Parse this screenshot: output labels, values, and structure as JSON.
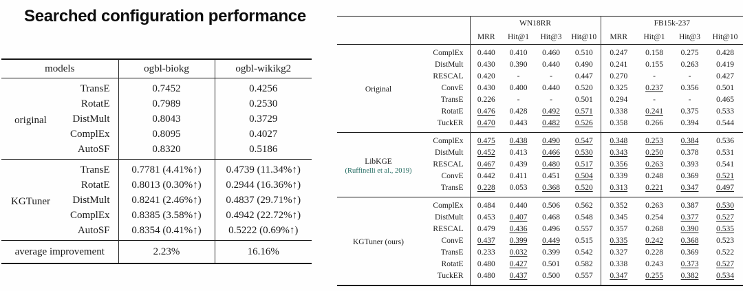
{
  "title": "Searched configuration performance",
  "colors": {
    "citation_link": "#20695f",
    "text": "#1a1a1a",
    "rule": "#161616"
  },
  "left_table": {
    "headers": [
      "models",
      "ogbl-biokg",
      "ogbl-wikikg2"
    ],
    "groups": [
      {
        "label": "original",
        "rows": [
          {
            "model": "TransE",
            "biokg": "0.7452",
            "wikikg2": "0.4256"
          },
          {
            "model": "RotatE",
            "biokg": "0.7989",
            "wikikg2": "0.2530"
          },
          {
            "model": "DistMult",
            "biokg": "0.8043",
            "wikikg2": "0.3729"
          },
          {
            "model": "ComplEx",
            "biokg": "0.8095",
            "wikikg2": "0.4027"
          },
          {
            "model": "AutoSF",
            "biokg": "0.8320",
            "wikikg2": "0.5186"
          }
        ]
      },
      {
        "label": "KGTuner",
        "rows": [
          {
            "model": "TransE",
            "biokg": "0.7781 (4.41%↑)",
            "wikikg2": "0.4739 (11.34%↑)"
          },
          {
            "model": "RotatE",
            "biokg": "0.8013 (0.30%↑)",
            "wikikg2": "0.2944 (16.36%↑)"
          },
          {
            "model": "DistMult",
            "biokg": "0.8241 (2.46%↑)",
            "wikikg2": "0.4837 (29.71%↑)"
          },
          {
            "model": "ComplEx",
            "biokg": "0.8385 (3.58%↑)",
            "wikikg2": "0.4942 (22.72%↑)"
          },
          {
            "model": "AutoSF",
            "biokg": "0.8354 (0.41%↑)",
            "wikikg2": "0.5222 (0.69%↑)"
          }
        ]
      }
    ],
    "footer": {
      "label": "average improvement",
      "biokg": "2.23%",
      "wikikg2": "16.16%"
    }
  },
  "right_table": {
    "col_groups": [
      "WN18RR",
      "FB15k-237"
    ],
    "metric_headers": [
      "MRR",
      "Hit@1",
      "Hit@3",
      "Hit@10",
      "MRR",
      "Hit@1",
      "Hit@3",
      "Hit@10"
    ],
    "style_legend": "p=plain, b=bold(best), u=underline(second best)",
    "groups": [
      {
        "label_lines": [
          "Original"
        ],
        "rows": [
          {
            "model": "ComplEx",
            "values": [
              "0.440",
              "0.410",
              "0.460",
              "0.510",
              "0.247",
              "0.158",
              "0.275",
              "0.428"
            ],
            "styles": "pppppppp"
          },
          {
            "model": "DistMult",
            "values": [
              "0.430",
              "0.390",
              "0.440",
              "0.490",
              "0.241",
              "0.155",
              "0.263",
              "0.419"
            ],
            "styles": "pppppppp"
          },
          {
            "model": "RESCAL",
            "values": [
              "0.420",
              "-",
              "-",
              "0.447",
              "0.270",
              "-",
              "-",
              "0.427"
            ],
            "styles": "pppppppp"
          },
          {
            "model": "ConvE",
            "values": [
              "0.430",
              "0.400",
              "0.440",
              "0.520",
              "0.325",
              "0.237",
              "0.356",
              "0.501"
            ],
            "styles": "pppbpupp"
          },
          {
            "model": "TransE",
            "values": [
              "0.226",
              "-",
              "-",
              "0.501",
              "0.294",
              "-",
              "-",
              "0.465"
            ],
            "styles": "pppppppp"
          },
          {
            "model": "RotatE",
            "values": [
              "0.476",
              "0.428",
              "0.492",
              "0.571",
              "0.338",
              "0.241",
              "0.375",
              "0.533"
            ],
            "styles": "ubuububb"
          },
          {
            "model": "TuckER",
            "values": [
              "0.470",
              "0.443",
              "0.482",
              "0.526",
              "0.358",
              "0.266",
              "0.394",
              "0.544"
            ],
            "styles": "ubuubbbb"
          }
        ]
      },
      {
        "label_lines": [
          "LibKGE",
          "(Ruffinelli et al., 2019)"
        ],
        "rows": [
          {
            "model": "ComplEx",
            "values": [
              "0.475",
              "0.438",
              "0.490",
              "0.547",
              "0.348",
              "0.253",
              "0.384",
              "0.536"
            ],
            "styles": "uuuuuuub"
          },
          {
            "model": "DistMult",
            "values": [
              "0.452",
              "0.413",
              "0.466",
              "0.530",
              "0.343",
              "0.250",
              "0.378",
              "0.531"
            ],
            "styles": "ubuuuubb"
          },
          {
            "model": "RESCAL",
            "values": [
              "0.467",
              "0.439",
              "0.480",
              "0.517",
              "0.356",
              "0.263",
              "0.393",
              "0.541"
            ],
            "styles": "ubuuuubb"
          },
          {
            "model": "ConvE",
            "values": [
              "0.442",
              "0.411",
              "0.451",
              "0.504",
              "0.339",
              "0.248",
              "0.369",
              "0.521"
            ],
            "styles": "bbbubbbu"
          },
          {
            "model": "TransE",
            "values": [
              "0.228",
              "0.053",
              "0.368",
              "0.520",
              "0.313",
              "0.221",
              "0.347",
              "0.497"
            ],
            "styles": "ubuuuuuu"
          }
        ]
      },
      {
        "label_lines": [
          "KGTuner (ours)"
        ],
        "rows": [
          {
            "model": "ComplEx",
            "values": [
              "0.484",
              "0.440",
              "0.506",
              "0.562",
              "0.352",
              "0.263",
              "0.387",
              "0.530"
            ],
            "styles": "bbbbbbbu"
          },
          {
            "model": "DistMult",
            "values": [
              "0.453",
              "0.407",
              "0.468",
              "0.548",
              "0.345",
              "0.254",
              "0.377",
              "0.527"
            ],
            "styles": "bubbbbuu"
          },
          {
            "model": "RESCAL",
            "values": [
              "0.479",
              "0.436",
              "0.496",
              "0.557",
              "0.357",
              "0.268",
              "0.390",
              "0.535"
            ],
            "styles": "bubbbbuu"
          },
          {
            "model": "ConvE",
            "values": [
              "0.437",
              "0.399",
              "0.449",
              "0.515",
              "0.335",
              "0.242",
              "0.368",
              "0.523"
            ],
            "styles": "uuupuuub"
          },
          {
            "model": "TransE",
            "values": [
              "0.233",
              "0.032",
              "0.399",
              "0.542",
              "0.327",
              "0.228",
              "0.369",
              "0.522"
            ],
            "styles": "bubbbbbb"
          },
          {
            "model": "RotatE",
            "values": [
              "0.480",
              "0.427",
              "0.501",
              "0.582",
              "0.338",
              "0.243",
              "0.373",
              "0.527"
            ],
            "styles": "bubbbbuu"
          },
          {
            "model": "TuckER",
            "values": [
              "0.480",
              "0.437",
              "0.500",
              "0.557",
              "0.347",
              "0.255",
              "0.382",
              "0.534"
            ],
            "styles": "bubbuuuu"
          }
        ]
      }
    ]
  }
}
